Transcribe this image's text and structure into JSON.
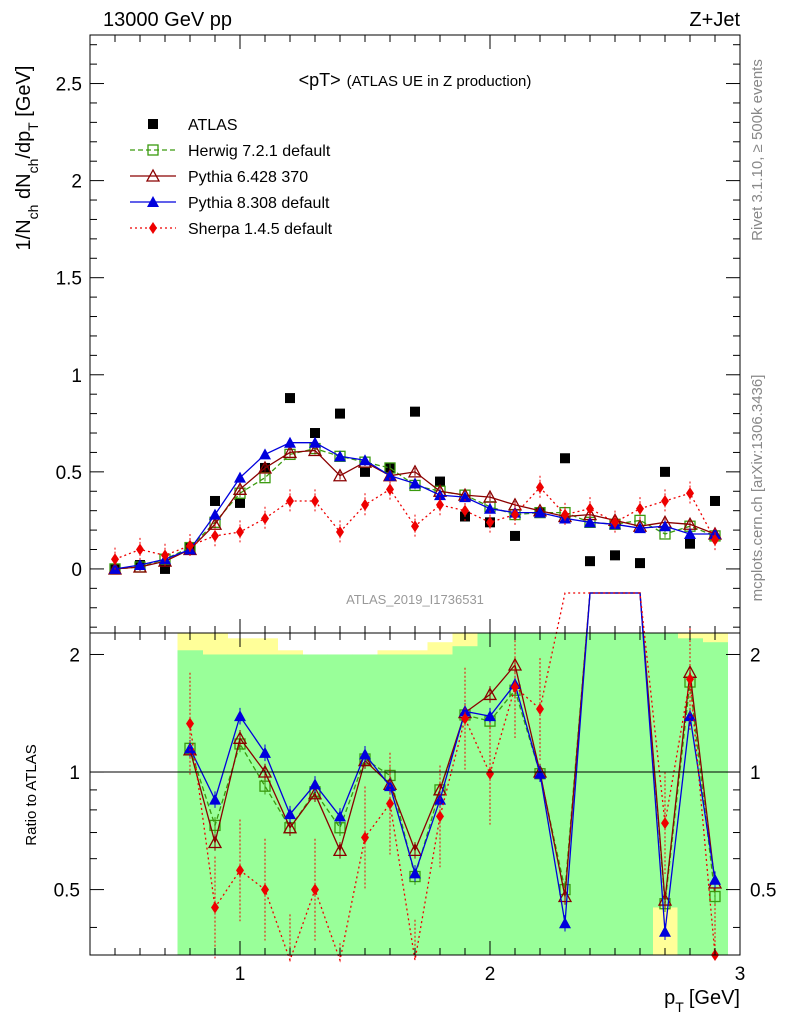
{
  "header": {
    "energy": "13000 GeV pp",
    "process": "Z+Jet"
  },
  "side_labels": {
    "rivet": "Rivet 3.1.10, ≥ 500k events",
    "mcplots": "mcplots.cern.ch [arXiv:1306.3436]"
  },
  "chart_data": {
    "type": "scatter",
    "title_main": "<pT>",
    "title_sub": "(ATLAS UE in Z production)",
    "analysis_id": "ATLAS_2019_I1736531",
    "xlabel_main": "p",
    "xlabel_sub": "T",
    "xlabel_unit": "[GeV]",
    "ylabel": "1/N_ch dN_ch/dp_T [GeV]",
    "ylabel_parts": {
      "a": "1/N",
      "b": "ch",
      "c": " dN",
      "d": "ch",
      "e": "/dp",
      "f": "T",
      "g": " [GeV]"
    },
    "ratio_ylabel": "Ratio to ATLAS",
    "xlim": [
      0.4,
      3.0
    ],
    "ylim": [
      -0.33,
      2.75
    ],
    "ratio_ylim": [
      0.34,
      2.27
    ],
    "x_ticks": [
      1,
      2,
      3
    ],
    "y_ticks": [
      0,
      0.5,
      1,
      1.5,
      2,
      2.5
    ],
    "y_tick_labels": [
      "0",
      "0.5",
      "1",
      "1.5",
      "2",
      "2.5"
    ],
    "ratio_ticks": [
      0.5,
      1,
      2
    ],
    "ratio_tick_labels": [
      "0.5",
      "1",
      "2"
    ],
    "x_tick_labels": [
      "1",
      "2",
      "3"
    ],
    "x": [
      0.5,
      0.6,
      0.7,
      0.8,
      0.9,
      1.0,
      1.1,
      1.2,
      1.3,
      1.4,
      1.5,
      1.6,
      1.7,
      1.8,
      1.9,
      2.0,
      2.1,
      2.2,
      2.3,
      2.4,
      2.5,
      2.6,
      2.7,
      2.8,
      2.9
    ],
    "series": [
      {
        "name": "ATLAS",
        "marker": "square-filled",
        "color": "#000000",
        "values": [
          0.0,
          0.02,
          0.0,
          0.11,
          0.35,
          0.34,
          0.52,
          0.88,
          0.7,
          0.8,
          0.5,
          0.52,
          0.81,
          0.45,
          0.27,
          0.24,
          0.17,
          0.29,
          0.57,
          0.04,
          0.07,
          0.03,
          0.5,
          0.13,
          0.35
        ]
      },
      {
        "name": "Herwig 7.2.1 default",
        "marker": "square-open",
        "color": "#3a9a0e",
        "dash": "dashed",
        "values": [
          0.0,
          0.01,
          0.05,
          0.11,
          0.24,
          0.39,
          0.47,
          0.59,
          0.62,
          0.58,
          0.55,
          0.52,
          0.43,
          0.4,
          0.38,
          0.32,
          0.28,
          0.29,
          0.29,
          0.24,
          0.23,
          0.25,
          0.18,
          0.22,
          0.17
        ]
      },
      {
        "name": "Pythia 6.428 370",
        "marker": "triangle-open",
        "color": "#8b0000",
        "dash": "solid",
        "values": [
          0.0,
          0.01,
          0.04,
          0.1,
          0.23,
          0.41,
          0.52,
          0.6,
          0.61,
          0.48,
          0.55,
          0.48,
          0.5,
          0.4,
          0.38,
          0.37,
          0.33,
          0.3,
          0.27,
          0.28,
          0.25,
          0.22,
          0.24,
          0.23,
          0.18
        ]
      },
      {
        "name": "Pythia 8.308 default",
        "marker": "triangle-filled",
        "color": "#0000dd",
        "dash": "solid",
        "values": [
          0.0,
          0.02,
          0.05,
          0.1,
          0.28,
          0.47,
          0.59,
          0.65,
          0.65,
          0.58,
          0.56,
          0.48,
          0.44,
          0.38,
          0.37,
          0.31,
          0.29,
          0.29,
          0.26,
          0.24,
          0.23,
          0.21,
          0.22,
          0.18,
          0.18
        ]
      },
      {
        "name": "Sherpa 1.4.5 default",
        "marker": "diamond-filled",
        "color": "#ee0000",
        "dash": "dotted",
        "values": [
          0.05,
          0.1,
          0.07,
          0.12,
          0.17,
          0.19,
          0.26,
          0.35,
          0.35,
          0.19,
          0.33,
          0.41,
          0.22,
          0.33,
          0.3,
          0.24,
          0.28,
          0.42,
          0.28,
          0.31,
          0.24,
          0.31,
          0.35,
          0.39,
          0.15
        ]
      }
    ],
    "ratio_series": [
      {
        "name": "Herwig 7.2.1 default",
        "values": [
          null,
          null,
          null,
          1.15,
          0.73,
          1.18,
          0.92,
          0.72,
          0.89,
          0.72,
          1.08,
          0.98,
          0.54,
          0.9,
          1.4,
          1.35,
          1.62,
          0.99,
          0.5,
          null,
          null,
          null,
          0.46,
          1.7,
          0.48
        ]
      },
      {
        "name": "Pythia 6.428 370",
        "values": [
          null,
          null,
          null,
          1.14,
          0.66,
          1.22,
          1.0,
          0.72,
          0.88,
          0.63,
          1.07,
          0.93,
          0.63,
          0.9,
          1.42,
          1.58,
          1.88,
          1.0,
          0.48,
          null,
          null,
          null,
          0.47,
          1.8,
          0.52
        ]
      },
      {
        "name": "Pythia 8.308 default",
        "values": [
          null,
          null,
          null,
          1.15,
          0.85,
          1.39,
          1.12,
          0.78,
          0.93,
          0.77,
          1.11,
          0.92,
          0.55,
          0.85,
          1.43,
          1.39,
          1.68,
          0.99,
          0.41,
          null,
          null,
          null,
          0.39,
          1.39,
          0.53
        ]
      },
      {
        "name": "Sherpa 1.4.5 default",
        "values": [
          null,
          null,
          null,
          1.33,
          0.45,
          0.56,
          0.5,
          0.32,
          0.5,
          0.27,
          0.68,
          0.83,
          0.31,
          0.77,
          1.37,
          0.99,
          1.65,
          1.45,
          null,
          null,
          null,
          null,
          0.74,
          1.73,
          0.34
        ]
      }
    ],
    "ratio_band_green": [
      null,
      null,
      null,
      [
        0.3,
        2.05
      ],
      [
        0.3,
        2.0
      ],
      [
        0.3,
        2.0
      ],
      [
        0.3,
        2.0
      ],
      [
        0.3,
        2.0
      ],
      [
        0.3,
        2.0
      ],
      [
        0.3,
        2.0
      ],
      [
        0.3,
        2.0
      ],
      [
        0.3,
        2.0
      ],
      [
        0.3,
        2.0
      ],
      [
        0.3,
        2.0
      ],
      [
        0.3,
        2.1
      ],
      [
        0.3,
        2.27
      ],
      [
        0.3,
        2.27
      ],
      [
        0.3,
        2.27
      ],
      [
        0.3,
        2.27
      ],
      [
        0.3,
        2.27
      ],
      [
        0.3,
        2.27
      ],
      [
        0.3,
        2.27
      ],
      [
        0.45,
        2.27
      ],
      [
        0.3,
        2.2
      ],
      [
        0.3,
        2.15
      ]
    ],
    "ratio_band_yellow": [
      null,
      null,
      null,
      [
        0.3,
        2.27
      ],
      [
        0.3,
        2.27
      ],
      [
        0.3,
        2.2
      ],
      [
        0.3,
        2.2
      ],
      [
        0.3,
        2.05
      ],
      [
        0.3,
        2.0
      ],
      [
        0.3,
        2.0
      ],
      [
        0.3,
        2.0
      ],
      [
        0.3,
        2.05
      ],
      [
        0.3,
        2.05
      ],
      [
        0.3,
        2.15
      ],
      [
        0.3,
        2.27
      ],
      [
        0.3,
        2.27
      ],
      [
        0.3,
        2.27
      ],
      [
        0.3,
        2.27
      ],
      [
        0.3,
        2.27
      ],
      [
        0.3,
        2.27
      ],
      [
        0.3,
        2.27
      ],
      [
        0.3,
        2.27
      ],
      [
        0.3,
        2.27
      ],
      [
        0.3,
        2.27
      ],
      [
        0.3,
        2.27
      ]
    ],
    "legend_position": "top-left",
    "grid": false
  }
}
